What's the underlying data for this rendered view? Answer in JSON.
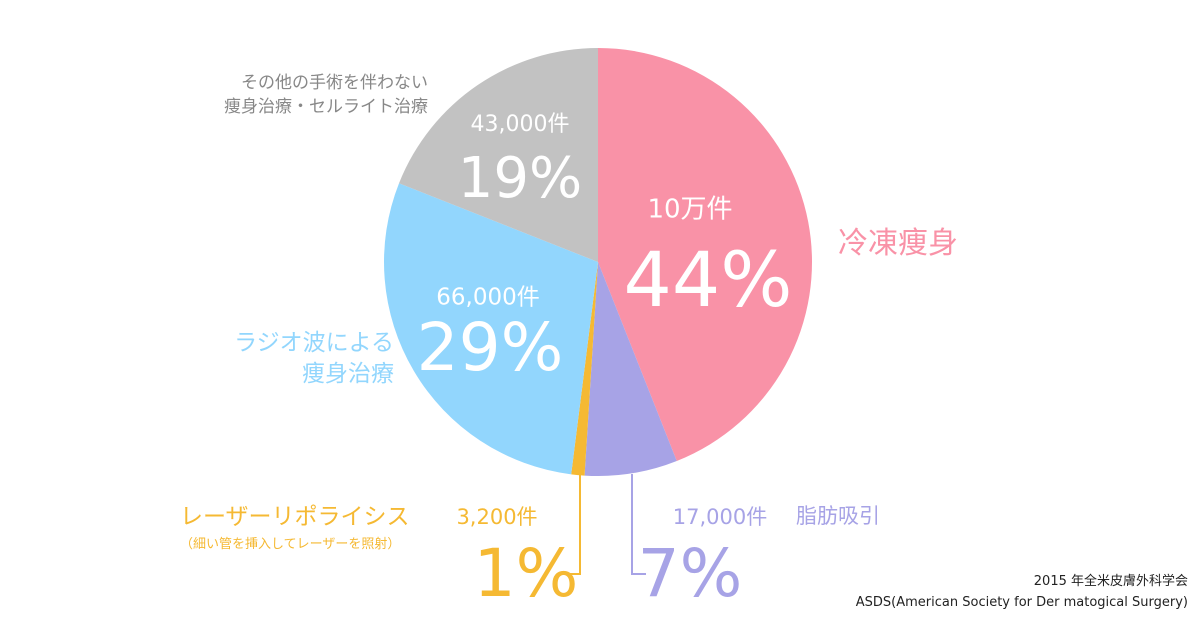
{
  "chart_data": {
    "type": "pie",
    "categories": [
      "冷凍痩身",
      "脂肪吸引",
      "レーザーリポライシス",
      "ラジオ波による\n痩身治療",
      "その他の手術を伴わない\n痩身治療・セルライト治療"
    ],
    "values": [
      44,
      7,
      1,
      29,
      19
    ],
    "value_labels": [
      "44%",
      "7%",
      "1%",
      "29%",
      "19%"
    ],
    "count_labels": [
      "10万件",
      "17,000件",
      "3,200件",
      "66,000件",
      "43,000件"
    ],
    "colors": [
      "#f992a7",
      "#a7a3e6",
      "#f5b933",
      "#92d6fd",
      "#c2c2c2"
    ],
    "annotation": "（細い管を挿入してレーザーを照射）",
    "source": "2015 年全米皮膚外科学会\nASDS(American Society for Der matogical Surgery)"
  }
}
